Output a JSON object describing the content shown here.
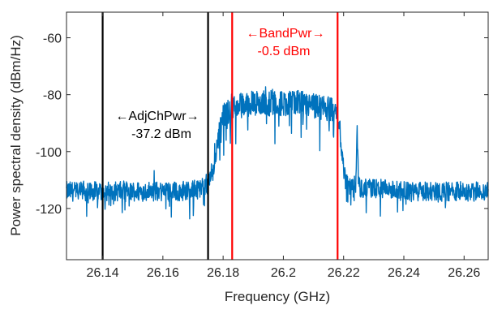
{
  "chart_data": {
    "type": "line",
    "title": "",
    "xlabel": "Frequency (GHz)",
    "ylabel": "Power spectral density (dBm/Hz)",
    "xlim": [
      26.128,
      26.268
    ],
    "ylim": [
      -138,
      -51
    ],
    "xticks": [
      26.14,
      26.16,
      26.18,
      26.2,
      26.22,
      26.24,
      26.26
    ],
    "xtick_labels": [
      "26.14",
      "26.16",
      "26.18",
      "26.2",
      "26.22",
      "26.24",
      "26.26"
    ],
    "yticks": [
      -60,
      -80,
      -100,
      -120
    ],
    "ytick_labels": [
      "-60",
      "-80",
      "-100",
      "-120"
    ],
    "grid": false,
    "series": [
      {
        "color": "#0072BD",
        "x": [
          26.128,
          26.135,
          26.145,
          26.155,
          26.165,
          26.172,
          26.175,
          26.177,
          26.178,
          26.179,
          26.18,
          26.181,
          26.185,
          26.19,
          26.195,
          26.2,
          26.205,
          26.21,
          26.215,
          26.217,
          26.218,
          26.219,
          26.22,
          26.2205,
          26.221,
          26.222,
          26.224,
          26.2245,
          26.225,
          26.226,
          26.23,
          26.24,
          26.25,
          26.26,
          26.268
        ],
        "y": [
          -114,
          -114,
          -114,
          -114,
          -114,
          -113,
          -111,
          -105,
          -98,
          -92,
          -88,
          -86,
          -84,
          -83,
          -83,
          -83,
          -83,
          -84,
          -85,
          -86,
          -88,
          -95,
          -105,
          -110,
          -111,
          -112,
          -112,
          -92,
          -112,
          -113,
          -113,
          -114,
          -114,
          -114,
          -114
        ]
      }
    ],
    "vertical_markers": [
      {
        "x": 26.14,
        "color": "#000000"
      },
      {
        "x": 26.175,
        "color": "#000000"
      },
      {
        "x": 26.183,
        "color": "#FF0000"
      },
      {
        "x": 26.218,
        "color": "#FF0000"
      }
    ],
    "annotations": [
      {
        "text": "←AdjChPwr→",
        "value": "-37.2 dBm",
        "color": "#000000"
      },
      {
        "text": "←BandPwr→",
        "value": "-0.5 dBm",
        "color": "#FF0000"
      }
    ]
  }
}
